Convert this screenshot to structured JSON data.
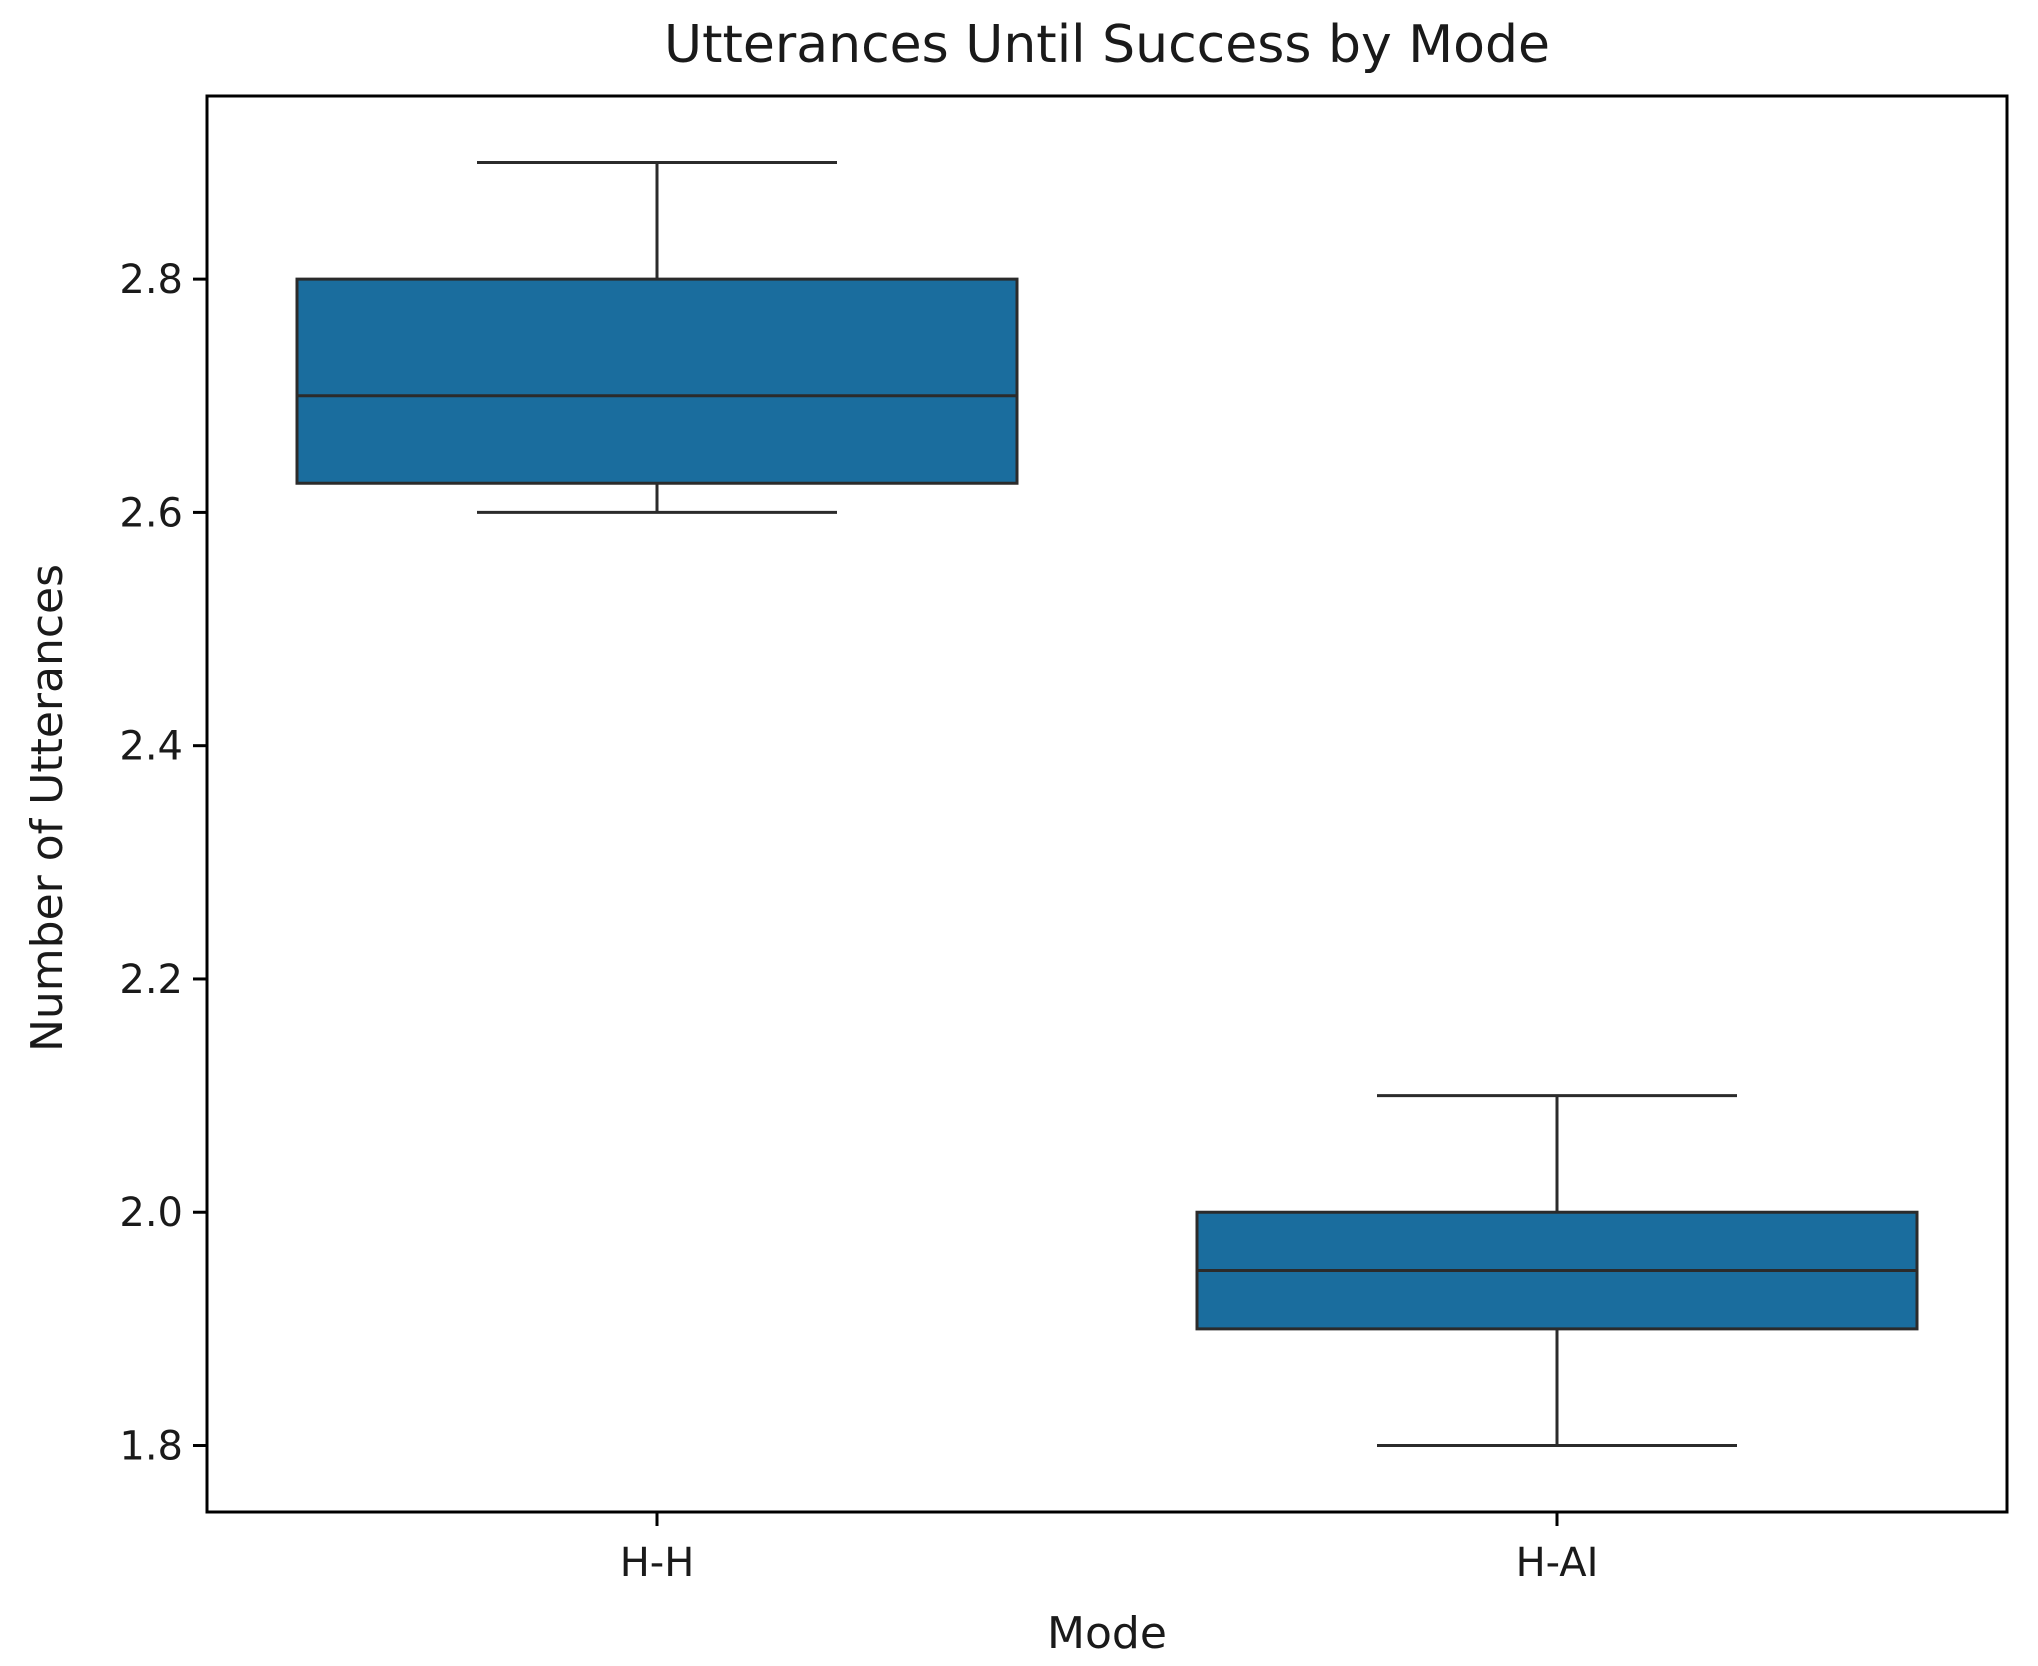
{
  "chart_data": {
    "type": "box",
    "title": "Utterances Until Success by Mode",
    "xlabel": "Mode",
    "ylabel": "Number of Utterances",
    "categories": [
      "H-H",
      "H-AI"
    ],
    "yticks": [
      "1.8",
      "2.0",
      "2.2",
      "2.4",
      "2.6",
      "2.8"
    ],
    "ylim": [
      1.743,
      2.957
    ],
    "grid": false,
    "legend": "none",
    "boxes": [
      {
        "category": "H-H",
        "whisker_low": 2.6,
        "q1": 2.625,
        "median": 2.7,
        "q3": 2.8,
        "whisker_high": 2.9
      },
      {
        "category": "H-AI",
        "whisker_low": 1.8,
        "q1": 1.9,
        "median": 1.95,
        "q3": 2.0,
        "whisker_high": 2.1
      }
    ]
  },
  "colors": {
    "box_fill": "#1a6d9e",
    "lines": "#2b2b2b",
    "text": "#1a1a1a",
    "frame": "#000000"
  }
}
